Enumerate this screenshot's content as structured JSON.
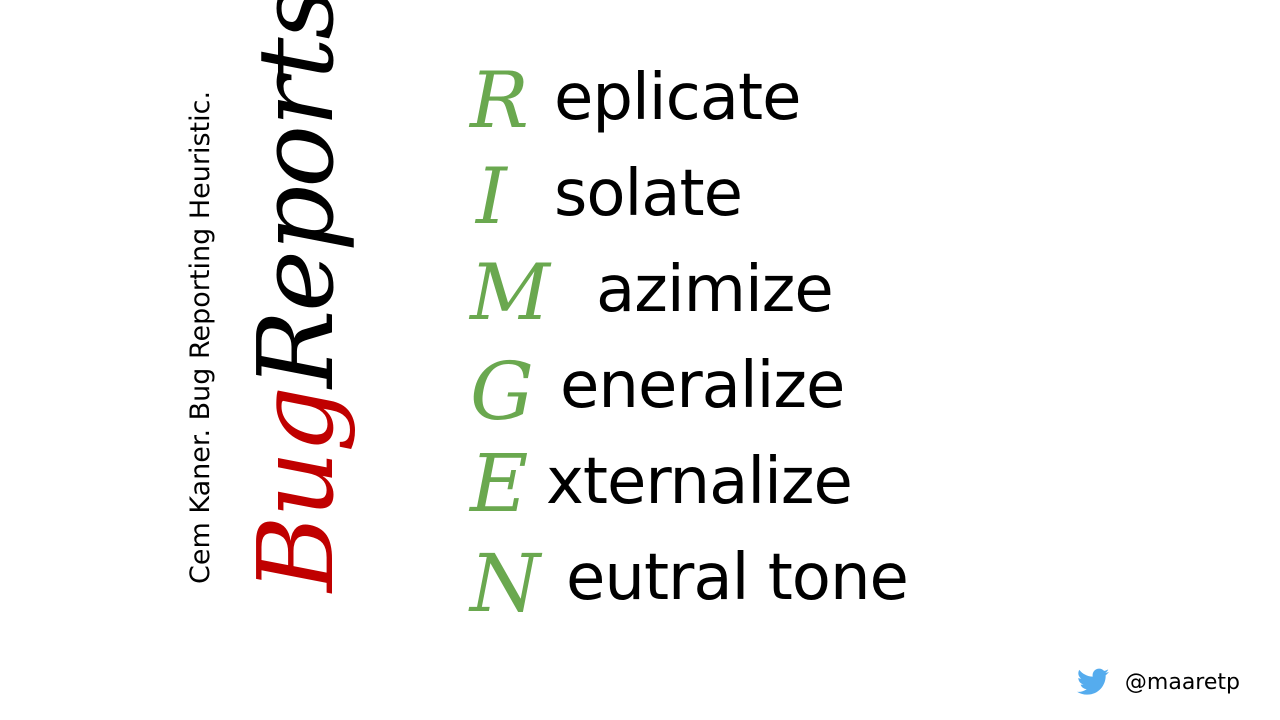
{
  "attribution": "Cem Kaner. Bug Reporting Heuristic.",
  "title": {
    "word1": "Bug",
    "word2": "Reports",
    "color1": "#c00000",
    "color2": "#000000"
  },
  "accent_color": "#6aa84f",
  "acrostic": [
    {
      "letter": "R",
      "rest": "eplicate"
    },
    {
      "letter": "I",
      "rest": "solate"
    },
    {
      "letter": "M",
      "rest": "azimize"
    },
    {
      "letter": "G",
      "rest": "eneralize"
    },
    {
      "letter": "E",
      "rest": "xternalize"
    },
    {
      "letter": "N",
      "rest": "eutral tone"
    }
  ],
  "footer": {
    "icon": "twitter-bird-icon",
    "handle": "@maaretp"
  }
}
